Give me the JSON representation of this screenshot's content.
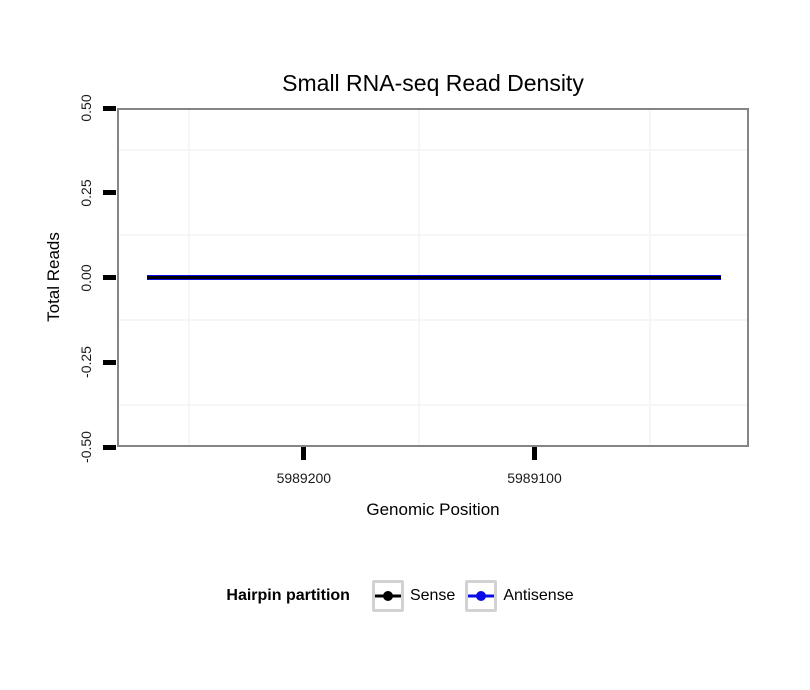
{
  "chart_data": {
    "type": "line",
    "title": "Small RNA-seq Read Density",
    "xlabel": "Genomic Position",
    "ylabel": "Total Reads",
    "x_axis": {
      "reversed": true,
      "domain_left_to_right": [
        5989281,
        5989007
      ],
      "breaks": [
        5989200,
        5989100
      ],
      "break_labels": [
        "5989200",
        "5989100"
      ],
      "minor_breaks": [
        5989250,
        5989150,
        5989050
      ]
    },
    "y_axis": {
      "domain_top_to_bottom": [
        0.5,
        -0.5
      ],
      "breaks": [
        0.5,
        0.25,
        0,
        -0.25,
        -0.5
      ],
      "break_labels": [
        "0.50",
        "0.25",
        "0.00",
        "-0.25",
        "-0.50"
      ],
      "minor_breaks": [
        0.375,
        0.125,
        -0.125,
        -0.375
      ]
    },
    "grid": {
      "major": false,
      "minor": true
    },
    "series": [
      {
        "name": "Sense",
        "color": "#000000",
        "x": [
          5989268,
          5989019
        ],
        "y": [
          0,
          0
        ],
        "note": "constant 0 reads across entire displayed region"
      },
      {
        "name": "Antisense",
        "color": "#0B0BE8",
        "x": [
          5989268,
          5989019
        ],
        "y": [
          0,
          0
        ],
        "note": "constant 0 reads across entire displayed region"
      }
    ],
    "legend": {
      "title": "Hairpin partition",
      "position": "bottom",
      "entries": [
        {
          "label": "Sense",
          "color": "#000000"
        },
        {
          "label": "Antisense",
          "color": "#0B0BE8"
        }
      ]
    },
    "style": {
      "panel_border": "#858585",
      "minor_grid": "#f6f6f6",
      "tick_color": "#000000",
      "legend_key_border": "#d2d2d2",
      "background": "#ffffff"
    }
  }
}
